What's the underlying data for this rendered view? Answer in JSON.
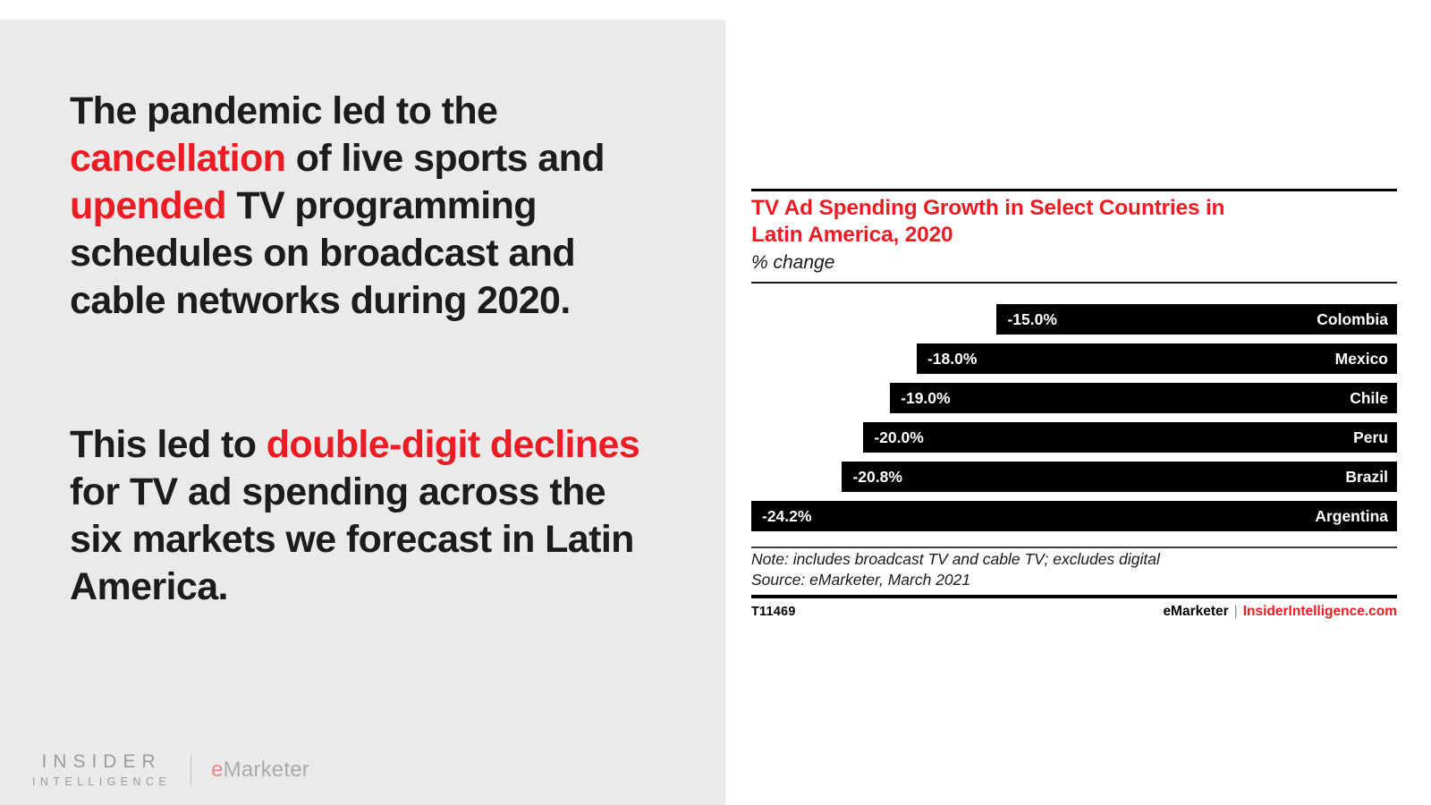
{
  "page": {
    "background": "#ffffff",
    "panel_background": "#eaeaea",
    "accent_red": "#ec1c24",
    "text_black": "#1d1b1b"
  },
  "left_panel": {
    "paragraphs": [
      {
        "segments": [
          {
            "text": "The pandemic led to the ",
            "red": false
          },
          {
            "text": "cancellation",
            "red": true
          },
          {
            "text": " of live sports and ",
            "red": false
          },
          {
            "text": "upended",
            "red": true
          },
          {
            "text": " TV programming schedules on broadcast and cable networks during 2020.",
            "red": false
          }
        ]
      },
      {
        "segments": [
          {
            "text": "This led to ",
            "red": false
          },
          {
            "text": "double-digit declines",
            "red": true
          },
          {
            "text": " for TV ad spending across the six markets we forecast in Latin America.",
            "red": false
          }
        ]
      }
    ],
    "logo": {
      "line1": "INSIDER",
      "line2": "INTELLIGENCE",
      "brand_e": "e",
      "brand_rest": "Marketer"
    }
  },
  "chart": {
    "title_line1": "TV Ad Spending Growth in Select Countries in",
    "title_line2": "Latin America, 2020",
    "subtitle": "% change",
    "note": "Note: includes broadcast TV and cable TV; excludes digital",
    "source": "Source: eMarketer, March 2021",
    "footer_id": "T11469",
    "footer_brand": "eMarketer",
    "footer_separator": "|",
    "footer_site": "InsiderIntelligence.com"
  },
  "chart_data": {
    "type": "bar",
    "orientation": "horizontal-right-aligned",
    "title": "TV Ad Spending Growth in Select Countries in Latin America, 2020",
    "unit_label": "% change",
    "categories": [
      "Colombia",
      "Mexico",
      "Chile",
      "Peru",
      "Brazil",
      "Argentina"
    ],
    "values": [
      -15.0,
      -18.0,
      -19.0,
      -20.0,
      -20.8,
      -24.2
    ],
    "value_labels": [
      "-15.0%",
      "-18.0%",
      "-19.0%",
      "-20.0%",
      "-20.8%",
      "-24.2%"
    ],
    "xlim": [
      -24.2,
      0
    ],
    "bar_color": "#000000",
    "bar_text_color": "#ffffff",
    "grid": false,
    "legend": false
  }
}
